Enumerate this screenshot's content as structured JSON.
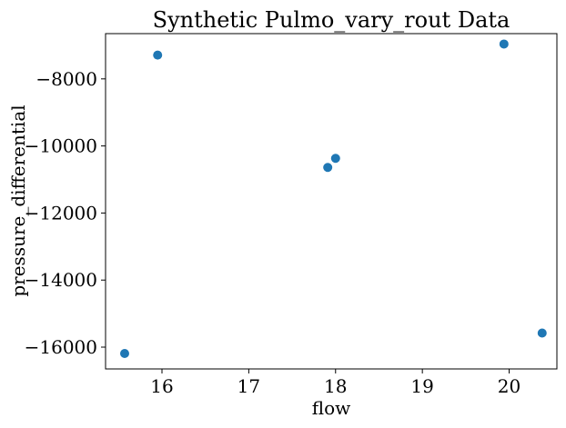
{
  "chart_data": {
    "type": "scatter",
    "title": "Synthetic Pulmo_vary_rout Data",
    "xlabel": "flow",
    "ylabel": "pressure_differential",
    "xlim": [
      15.35,
      20.55
    ],
    "ylim": [
      -16650,
      -6650
    ],
    "xticks": [
      16,
      17,
      18,
      19,
      20
    ],
    "yticks": [
      -8000,
      -10000,
      -12000,
      -14000,
      -16000
    ],
    "xtick_labels": [
      "16",
      "17",
      "18",
      "19",
      "20"
    ],
    "ytick_labels": [
      "−8000",
      "−10000",
      "−12000",
      "−14000",
      "−16000"
    ],
    "grid": false,
    "series": [
      {
        "color": "#1f77b4",
        "points": [
          {
            "x": 15.57,
            "y": -16190
          },
          {
            "x": 15.95,
            "y": -7290
          },
          {
            "x": 17.91,
            "y": -10640
          },
          {
            "x": 18.0,
            "y": -10370
          },
          {
            "x": 19.94,
            "y": -6960
          },
          {
            "x": 20.38,
            "y": -15580
          }
        ]
      }
    ]
  }
}
